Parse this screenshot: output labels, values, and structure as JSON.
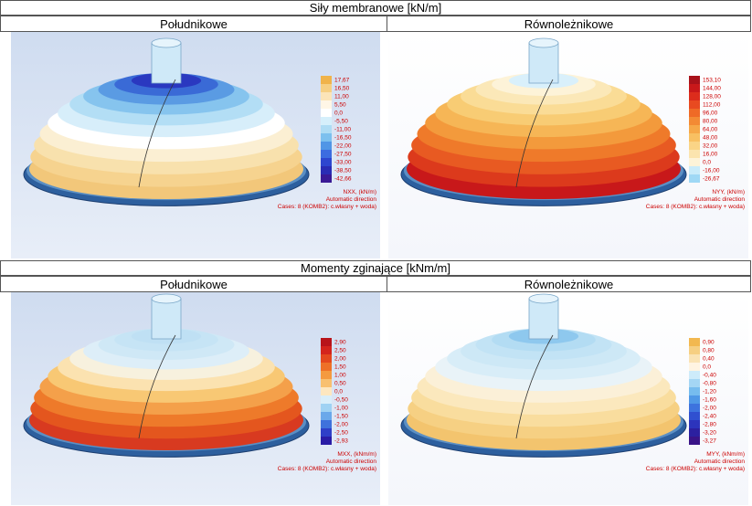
{
  "sections": [
    {
      "title": "Siły membranowe [kN/m]",
      "panels": [
        {
          "header": "Południkowe",
          "legend": [
            "17,67",
            "16,50",
            "11,00",
            "5,50",
            "0,0",
            "-5,50",
            "-11,00",
            "-16,50",
            "-22,00",
            "-27,50",
            "-33,00",
            "-38,50",
            "-42,66"
          ],
          "caption": [
            "NXX, (kN/m)",
            "Automatic direction",
            "Cases: 8 (KOMB2): c.własny + woda)"
          ]
        },
        {
          "header": "Równoleżnikowe",
          "legend": [
            "153,10",
            "144,00",
            "128,00",
            "112,00",
            "96,00",
            "80,00",
            "64,00",
            "48,00",
            "32,00",
            "16,00",
            "0,0",
            "-16,00",
            "-26,67"
          ],
          "caption": [
            "NYY, (kN/m)",
            "Automatic direction",
            "Cases: 8 (KOMB2): c.własny + woda)"
          ]
        }
      ]
    },
    {
      "title": "Momenty zginające [kNm/m]",
      "panels": [
        {
          "header": "Południkowe",
          "legend": [
            "2,90",
            "2,50",
            "2,00",
            "1,50",
            "1,00",
            "0,50",
            "0,0",
            "-0,50",
            "-1,00",
            "-1,50",
            "-2,00",
            "-2,50",
            "-2,93"
          ],
          "caption": [
            "MXX, (kNm/m)",
            "Automatic direction",
            "Cases: 8 (KOMB2): c.własny + woda)"
          ]
        },
        {
          "header": "Równoleżnikowe",
          "legend": [
            "0,90",
            "0,80",
            "0,40",
            "0,0",
            "-0,40",
            "-0,80",
            "-1,20",
            "-1,60",
            "-2,00",
            "-2,40",
            "-2,80",
            "-3,20",
            "-3,27"
          ],
          "caption": [
            "MYY, (kNm/m)",
            "Automatic direction",
            "Cases: 8 (KOMB2): c.własny + woda)"
          ]
        }
      ]
    }
  ]
}
